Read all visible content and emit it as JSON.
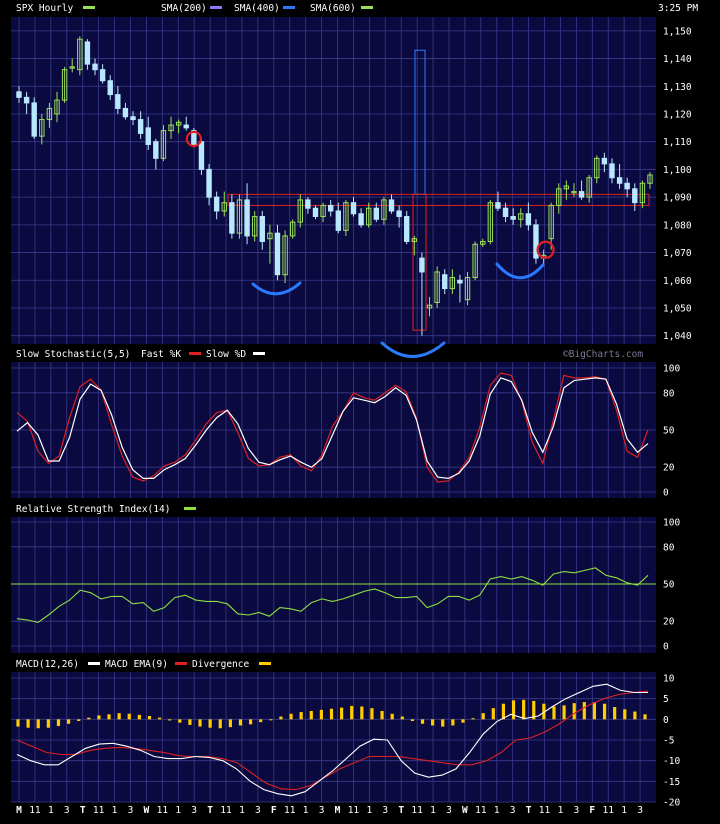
{
  "header": {
    "title": "SPX Hourly",
    "sma200": "SMA(200)",
    "sma400": "SMA(400)",
    "sma600": "SMA(600)",
    "time": "3:25 PM"
  },
  "colors": {
    "background": "#000000",
    "panel": "#0a0a40",
    "grid": "#3a3a8a",
    "up_candle": "#9be05a",
    "down_candle": "#b8e8ff",
    "fast_k": "#e02020",
    "slow_d": "#ffffff",
    "rsi": "#8ee040",
    "macd": "#ffffff",
    "macd_ema": "#e02020",
    "divergence": "#ffcc00",
    "annot_blue": "#2a7aff",
    "annot_red": "#e02020"
  },
  "chart_data": [
    {
      "type": "candlestick",
      "title": "SPX Hourly",
      "ylim": [
        1040,
        1150
      ],
      "y_ticks": [
        "1,040",
        "1,050",
        "1,060",
        "1,070",
        "1,080",
        "1,090",
        "1,100",
        "1,110",
        "1,120",
        "1,130",
        "1,140",
        "1,150"
      ],
      "candles": [
        [
          1128,
          1130,
          1124,
          1126
        ],
        [
          1126,
          1128,
          1120,
          1124
        ],
        [
          1124,
          1126,
          1111,
          1112
        ],
        [
          1112,
          1120,
          1109,
          1118
        ],
        [
          1118,
          1124,
          1115,
          1122
        ],
        [
          1120,
          1128,
          1117,
          1125
        ],
        [
          1125,
          1137,
          1124,
          1136
        ],
        [
          1137,
          1140,
          1135,
          1137
        ],
        [
          1136,
          1148,
          1134,
          1147
        ],
        [
          1146,
          1147,
          1136,
          1138
        ],
        [
          1138,
          1140,
          1134,
          1136
        ],
        [
          1136,
          1138,
          1131,
          1132
        ],
        [
          1132,
          1134,
          1125,
          1127
        ],
        [
          1127,
          1130,
          1120,
          1122
        ],
        [
          1122,
          1124,
          1118,
          1119
        ],
        [
          1119,
          1121,
          1116,
          1118
        ],
        [
          1118,
          1121,
          1111,
          1113
        ],
        [
          1115,
          1119,
          1107,
          1109
        ],
        [
          1110,
          1111,
          1100,
          1104
        ],
        [
          1104,
          1116,
          1103,
          1114
        ],
        [
          1114,
          1119,
          1111,
          1116
        ],
        [
          1116,
          1118,
          1113,
          1117
        ],
        [
          1116,
          1119,
          1114,
          1115
        ],
        [
          1114,
          1115,
          1108,
          1109
        ],
        [
          1110,
          1111,
          1098,
          1100
        ],
        [
          1100,
          1102,
          1087,
          1090
        ],
        [
          1090,
          1092,
          1082,
          1085
        ],
        [
          1085,
          1092,
          1083,
          1088
        ],
        [
          1088,
          1091,
          1075,
          1077
        ],
        [
          1077,
          1091,
          1075,
          1089
        ],
        [
          1089,
          1095,
          1073,
          1076
        ],
        [
          1076,
          1085,
          1074,
          1083
        ],
        [
          1083,
          1085,
          1071,
          1074
        ],
        [
          1075,
          1080,
          1066,
          1077
        ],
        [
          1077,
          1080,
          1060,
          1062
        ],
        [
          1062,
          1078,
          1059,
          1076
        ],
        [
          1076,
          1082,
          1075,
          1081
        ],
        [
          1081,
          1091,
          1079,
          1089
        ],
        [
          1089,
          1090,
          1084,
          1086
        ],
        [
          1086,
          1087,
          1082,
          1083
        ],
        [
          1083,
          1088,
          1081,
          1087
        ],
        [
          1087,
          1089,
          1083,
          1085
        ],
        [
          1085,
          1088,
          1077,
          1078
        ],
        [
          1078,
          1089,
          1076,
          1088
        ],
        [
          1088,
          1090,
          1083,
          1084
        ],
        [
          1084,
          1086,
          1079,
          1080
        ],
        [
          1080,
          1088,
          1079,
          1086
        ],
        [
          1086,
          1088,
          1081,
          1082
        ],
        [
          1082,
          1090,
          1080,
          1089
        ],
        [
          1089,
          1091,
          1084,
          1085
        ],
        [
          1085,
          1087,
          1079,
          1083
        ],
        [
          1083,
          1085,
          1073,
          1074
        ],
        [
          1074,
          1076,
          1069,
          1075
        ],
        [
          1068,
          1070,
          1040,
          1063
        ],
        [
          1050,
          1054,
          1047,
          1051
        ],
        [
          1052,
          1065,
          1050,
          1063
        ],
        [
          1062,
          1064,
          1055,
          1057
        ],
        [
          1057,
          1064,
          1055,
          1061
        ],
        [
          1060,
          1062,
          1052,
          1059
        ],
        [
          1053,
          1063,
          1051,
          1061
        ],
        [
          1061,
          1074,
          1060,
          1073
        ],
        [
          1073,
          1075,
          1072,
          1074
        ],
        [
          1074,
          1089,
          1073,
          1088
        ],
        [
          1088,
          1092,
          1085,
          1086
        ],
        [
          1086,
          1088,
          1081,
          1083
        ],
        [
          1083,
          1086,
          1080,
          1082
        ],
        [
          1082,
          1086,
          1079,
          1084
        ],
        [
          1084,
          1088,
          1078,
          1080
        ],
        [
          1080,
          1082,
          1066,
          1068
        ],
        [
          1068,
          1071,
          1066,
          1069
        ],
        [
          1075,
          1088,
          1071,
          1087
        ],
        [
          1087,
          1095,
          1084,
          1093
        ],
        [
          1093,
          1096,
          1089,
          1094
        ],
        [
          1092,
          1095,
          1090,
          1092
        ],
        [
          1092,
          1096,
          1089,
          1090
        ],
        [
          1090,
          1098,
          1088,
          1097
        ],
        [
          1097,
          1105,
          1095,
          1104
        ],
        [
          1104,
          1106,
          1099,
          1102
        ],
        [
          1102,
          1104,
          1095,
          1097
        ],
        [
          1097,
          1102,
          1093,
          1095
        ],
        [
          1095,
          1097,
          1090,
          1093
        ],
        [
          1093,
          1095,
          1085,
          1088
        ],
        [
          1088,
          1096,
          1086,
          1095
        ],
        [
          1095,
          1099,
          1093,
          1098
        ]
      ],
      "annotations": [
        "two blue arcs under lows",
        "red circles at 1,111 and 1,071",
        "red box 1,042–1,091",
        "blue box 1,091–1,143",
        "horizontal red band 1,087–1,091"
      ]
    },
    {
      "type": "line",
      "title": "Slow Stochastic(5,5)",
      "legend": [
        "Fast %K",
        "Slow %D"
      ],
      "ylim": [
        0,
        100
      ],
      "y_ticks": [
        "0",
        "20",
        "50",
        "80",
        "100"
      ],
      "series": [
        {
          "name": "Fast %K",
          "values": [
            64,
            57,
            33,
            23,
            29,
            60,
            85,
            91,
            82,
            54,
            29,
            12,
            9,
            13,
            21,
            24,
            30,
            42,
            55,
            64,
            66,
            48,
            27,
            21,
            22,
            28,
            30,
            21,
            17,
            30,
            53,
            65,
            80,
            76,
            74,
            80,
            86,
            81,
            59,
            20,
            8,
            9,
            16,
            28,
            52,
            86,
            96,
            94,
            73,
            40,
            23,
            58,
            94,
            92,
            92,
            93,
            91,
            66,
            33,
            28,
            50
          ]
        },
        {
          "name": "Slow %D",
          "values": [
            49,
            56,
            46,
            25,
            25,
            44,
            75,
            87,
            82,
            62,
            36,
            18,
            11,
            11,
            18,
            22,
            27,
            38,
            50,
            60,
            66,
            55,
            35,
            24,
            22,
            26,
            29,
            24,
            20,
            27,
            46,
            65,
            76,
            74,
            72,
            77,
            84,
            78,
            58,
            25,
            12,
            11,
            15,
            25,
            45,
            79,
            92,
            89,
            74,
            48,
            32,
            53,
            84,
            90,
            91,
            92,
            91,
            71,
            43,
            32,
            39
          ]
        }
      ]
    },
    {
      "type": "line",
      "title": "Relative Strength Index(14)",
      "ylim": [
        0,
        100
      ],
      "y_ticks": [
        "0",
        "20",
        "50",
        "80",
        "100"
      ],
      "reference_line": 50,
      "series": [
        {
          "name": "Relative Strength Index(14)",
          "values": [
            22,
            21,
            19,
            25,
            32,
            37,
            45,
            43,
            38,
            40,
            40,
            34,
            35,
            28,
            31,
            39,
            41,
            37,
            36,
            36,
            34,
            26,
            25,
            27,
            24,
            31,
            30,
            28,
            35,
            38,
            36,
            38,
            41,
            44,
            46,
            43,
            39,
            39,
            40,
            31,
            34,
            40,
            40,
            37,
            41,
            54,
            56,
            54,
            56,
            53,
            49,
            58,
            60,
            59,
            61,
            63,
            57,
            55,
            51,
            49,
            57
          ]
        }
      ]
    },
    {
      "type": "bar",
      "title": "MACD(12,26)",
      "legend": [
        "MACD",
        "MACD EMA(9)",
        "Divergence"
      ],
      "ylim": [
        -20,
        10
      ],
      "y_ticks": [
        "-20",
        "-15",
        "-10",
        "-5",
        "0",
        "5",
        "10"
      ],
      "series": [
        {
          "name": "MACD",
          "values": [
            -8.5,
            -10,
            -11,
            -11,
            -9,
            -7,
            -6,
            -5.8,
            -6.5,
            -7.5,
            -9,
            -9.5,
            -9.5,
            -9,
            -9.2,
            -10,
            -12,
            -15,
            -17,
            -18,
            -18.5,
            -17.5,
            -15,
            -12.5,
            -9.5,
            -6.5,
            -4.8,
            -5,
            -10,
            -13,
            -14,
            -13.5,
            -12,
            -8,
            -3.5,
            -0.5,
            1.2,
            0.2,
            0.8,
            3,
            5,
            6.5,
            8,
            8.5,
            7,
            6.5,
            6.5
          ]
        },
        {
          "name": "MACD EMA(9)",
          "values": [
            -5,
            -6.5,
            -8,
            -8.5,
            -8.5,
            -7.5,
            -7,
            -6.8,
            -7,
            -7.5,
            -8,
            -8.8,
            -9,
            -9,
            -9.5,
            -10.5,
            -13,
            -15.5,
            -16.8,
            -17,
            -16,
            -14,
            -12,
            -10.5,
            -9,
            -9,
            -9,
            -9.5,
            -10,
            -10.5,
            -11,
            -11,
            -10,
            -8,
            -5,
            -4.5,
            -3,
            -1,
            1.5,
            3.5,
            5,
            6,
            6.5,
            6.8
          ]
        },
        {
          "name": "Divergence",
          "values": [
            -1.3,
            -1.5,
            -1.6,
            -1.5,
            -1.2,
            -0.8,
            -0.3,
            0.3,
            0.7,
            0.9,
            1.1,
            1,
            0.8,
            0.6,
            0.3,
            -0.2,
            -0.6,
            -1,
            -1.3,
            -1.5,
            -1.6,
            -1.4,
            -1.1,
            -0.9,
            -0.5,
            0,
            0.5,
            1,
            1.3,
            1.5,
            1.7,
            1.9,
            2.1,
            2.4,
            2.3,
            2,
            1.5,
            1,
            0.5,
            -0.3,
            -0.8,
            -1.1,
            -1.3,
            -1.1,
            -0.6,
            0.2,
            1.1,
            2,
            2.8,
            3.4,
            3.5,
            3.3,
            2.8,
            2.3,
            2.5,
            2.9,
            3.1,
            3.1,
            2.8,
            2.2,
            1.8,
            1.4,
            0.9
          ]
        }
      ]
    }
  ],
  "xaxis": {
    "labels": [
      "M",
      "11",
      "1",
      "3",
      "T",
      "11",
      "1",
      "3",
      "W",
      "11",
      "1",
      "3",
      "T",
      "11",
      "1",
      "3",
      "F",
      "11",
      "1",
      "3",
      "M",
      "11",
      "1",
      "3",
      "T",
      "11",
      "1",
      "3",
      "W",
      "11",
      "1",
      "3",
      "T",
      "11",
      "1",
      "3",
      "F",
      "11",
      "1",
      "3"
    ]
  },
  "panels": {
    "stoch_title": "Slow Stochastic(5,5)",
    "stoch_fast": "Fast %K",
    "stoch_slow": "Slow %D",
    "watermark": "©BigCharts.com",
    "rsi_title": "Relative Strength Index(14)",
    "macd_title": "MACD(12,26)",
    "macd_ema": "MACD EMA(9)",
    "divergence": "Divergence"
  }
}
